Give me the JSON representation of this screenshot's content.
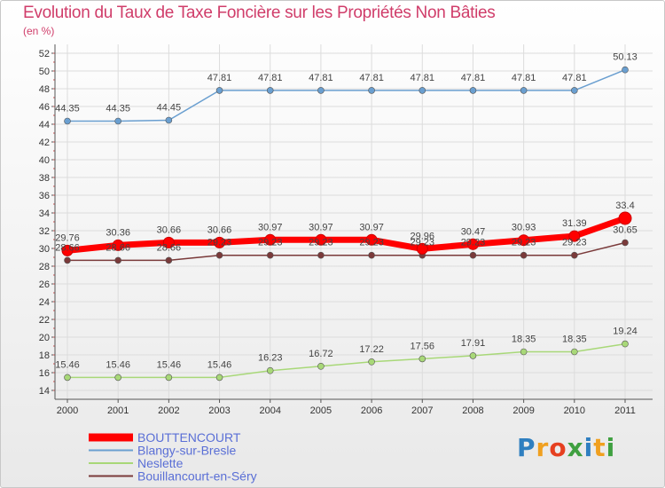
{
  "chart_data": {
    "type": "line",
    "title": "Evolution du Taux de Taxe Foncière sur les Propriétés Non Bâties",
    "ylabel": "(en %)",
    "xlabel": "",
    "ylim": [
      14,
      52
    ],
    "yticks": [
      14,
      16,
      18,
      20,
      22,
      24,
      26,
      28,
      30,
      32,
      34,
      36,
      38,
      40,
      42,
      44,
      46,
      48,
      50,
      52
    ],
    "categories": [
      "2000",
      "2001",
      "2002",
      "2003",
      "2004",
      "2005",
      "2006",
      "2007",
      "2008",
      "2009",
      "2010",
      "2011"
    ],
    "grid": true,
    "legend": "bottom-left",
    "series": [
      {
        "name": "BOUTTENCOURT",
        "color": "#ff0000",
        "values": [
          29.76,
          30.36,
          30.66,
          30.66,
          30.97,
          30.97,
          30.97,
          29.96,
          30.47,
          30.93,
          31.39,
          33.4
        ],
        "labels": [
          "29.76",
          "30.36",
          "30.66",
          "30.66",
          "30.97",
          "30.97",
          "30.97",
          "29.96",
          "30.47",
          "30.93",
          "31.39",
          "33.4"
        ]
      },
      {
        "name": "Blangy-sur-Bresle",
        "color": "#6a9fd0",
        "values": [
          44.35,
          44.35,
          44.45,
          47.81,
          47.81,
          47.81,
          47.81,
          47.81,
          47.81,
          47.81,
          47.81,
          50.13
        ],
        "labels": [
          "44.35",
          "44.35",
          "44.45",
          "47.81",
          "47.81",
          "47.81",
          "47.81",
          "47.81",
          "47.81",
          "47.81",
          "47.81",
          "50.13"
        ]
      },
      {
        "name": "Neslette",
        "color": "#a8d878",
        "values": [
          15.46,
          15.46,
          15.46,
          15.46,
          16.23,
          16.72,
          17.22,
          17.56,
          17.91,
          18.35,
          18.35,
          19.24
        ],
        "labels": [
          "15.46",
          "15.46",
          "15.46",
          "15.46",
          "16.23",
          "16.72",
          "17.22",
          "17.56",
          "17.91",
          "18.35",
          "18.35",
          "19.24"
        ]
      },
      {
        "name": "Bouillancourt-en-Séry",
        "color": "#7a3a3a",
        "values": [
          28.66,
          28.66,
          28.66,
          29.23,
          29.23,
          29.23,
          29.23,
          29.23,
          29.23,
          29.23,
          29.23,
          30.65
        ],
        "labels": [
          "28.66",
          "28.66",
          "28.66",
          "29.23",
          "29.23",
          "29.23",
          "29.23",
          "29.23",
          "29.23",
          "29.23",
          "29.23",
          "30.65"
        ]
      }
    ]
  },
  "logo": {
    "text": "Proxiti",
    "colors": [
      "#2f7fc0",
      "#f0a020",
      "#e64020",
      "#3fa040",
      "#2f7fc0",
      "#f0a020",
      "#3fa040"
    ]
  }
}
